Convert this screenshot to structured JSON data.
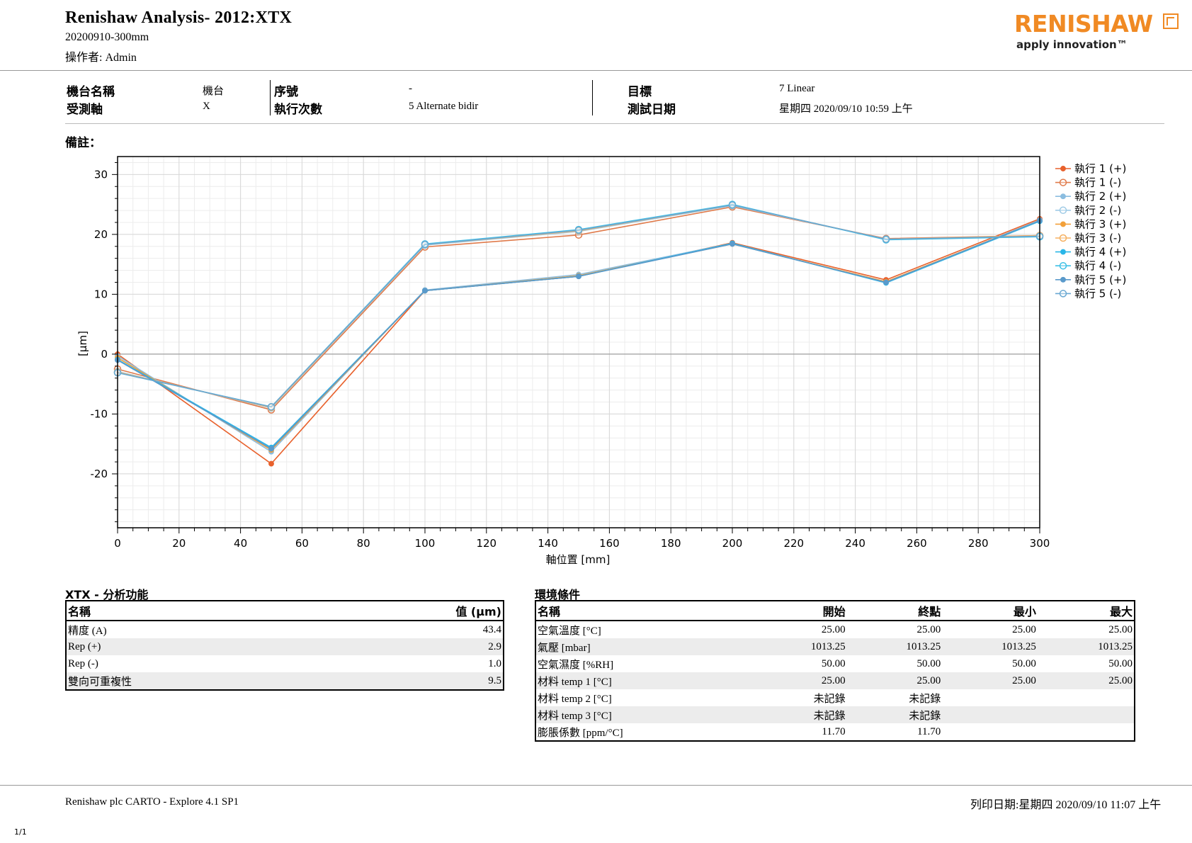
{
  "header": {
    "title": "Renishaw Analysis- 2012:XTX",
    "subtitle": "20200910-300mm",
    "operator": "操作者: Admin",
    "logo_text": "RENISHAW",
    "logo_tagline": "apply innovation™"
  },
  "info": {
    "machine_name_label": "機台名稱",
    "machine_name_value": "機台",
    "axis_label": "受測軸",
    "axis_value": "X",
    "serial_label": "序號",
    "serial_value": "-",
    "runs_label": "執行次數",
    "runs_value": "5 Alternate bidir",
    "target_label": "目標",
    "target_value": "7 Linear",
    "date_label": "測試日期",
    "date_value": "星期四 2020/09/10 10:59 上午"
  },
  "remarks_label": "備註：",
  "chart_data": {
    "type": "line",
    "xlabel": "軸位置 [mm]",
    "ylabel": "[µm]",
    "xlim": [
      0,
      300
    ],
    "ylim": [
      -29,
      33
    ],
    "x_ticks": [
      0,
      20,
      40,
      60,
      80,
      100,
      120,
      140,
      160,
      180,
      200,
      220,
      240,
      260,
      280,
      300
    ],
    "y_ticks": [
      -20,
      -10,
      0,
      10,
      20,
      30
    ],
    "grid": true,
    "legend_position": "right",
    "x": [
      0,
      50,
      100,
      150,
      200,
      250,
      300
    ],
    "series": [
      {
        "name": "執行 1 (+)",
        "color": "#e8612c",
        "values": [
          0.0,
          -18.3,
          10.6,
          13.0,
          18.6,
          12.4,
          22.6
        ]
      },
      {
        "name": "執行 1 (-)",
        "color": "#e07a4a",
        "values": [
          -2.5,
          -9.3,
          17.9,
          19.9,
          24.6,
          19.3,
          19.8
        ]
      },
      {
        "name": "執行 2 (+)",
        "color": "#8bbde0",
        "values": [
          -0.3,
          -16.3,
          10.7,
          13.3,
          18.5,
          12.0,
          22.4
        ]
      },
      {
        "name": "執行 2 (-)",
        "color": "#9fcbe6",
        "values": [
          -2.9,
          -9.0,
          18.2,
          20.5,
          24.8,
          19.2,
          19.7
        ]
      },
      {
        "name": "執行 3 (+)",
        "color": "#f2a03a",
        "values": [
          -0.6,
          -16.0,
          10.6,
          13.1,
          18.4,
          12.1,
          22.3
        ]
      },
      {
        "name": "執行 3 (-)",
        "color": "#f5b060",
        "values": [
          -3.0,
          -8.9,
          18.3,
          20.6,
          24.9,
          19.2,
          19.8
        ]
      },
      {
        "name": "執行 4 (+)",
        "color": "#29b6e8",
        "values": [
          -0.9,
          -15.6,
          10.6,
          13.0,
          18.5,
          11.9,
          22.2
        ]
      },
      {
        "name": "執行 4 (-)",
        "color": "#3cc0e6",
        "values": [
          -3.1,
          -8.8,
          18.4,
          20.8,
          25.0,
          19.1,
          19.6
        ]
      },
      {
        "name": "執行 5 (+)",
        "color": "#5a9acb",
        "values": [
          -1.0,
          -15.8,
          10.6,
          13.0,
          18.4,
          12.0,
          22.3
        ]
      },
      {
        "name": "執行 5 (-)",
        "color": "#6aa8d2",
        "values": [
          -3.1,
          -8.8,
          18.3,
          20.7,
          24.9,
          19.2,
          19.7
        ]
      }
    ]
  },
  "analysis": {
    "title": "XTX - 分析功能",
    "headers": [
      "名稱",
      "值 (µm)"
    ],
    "rows": [
      [
        "精度 (A)",
        "43.4"
      ],
      [
        "Rep (+)",
        "2.9"
      ],
      [
        "Rep (-)",
        "1.0"
      ],
      [
        "雙向可重複性",
        "9.5"
      ]
    ]
  },
  "environment": {
    "title": "環境條件",
    "headers": [
      "名稱",
      "開始",
      "終點",
      "最小",
      "最大"
    ],
    "rows": [
      [
        "空氣溫度 [°C]",
        "25.00",
        "25.00",
        "25.00",
        "25.00"
      ],
      [
        "氣壓 [mbar]",
        "1013.25",
        "1013.25",
        "1013.25",
        "1013.25"
      ],
      [
        "空氣濕度 [%RH]",
        "50.00",
        "50.00",
        "50.00",
        "50.00"
      ],
      [
        "材料 temp 1 [°C]",
        "25.00",
        "25.00",
        "25.00",
        "25.00"
      ],
      [
        "材料 temp 2 [°C]",
        "未記錄",
        "未記錄",
        "",
        ""
      ],
      [
        "材料 temp 3 [°C]",
        "未記錄",
        "未記錄",
        "",
        ""
      ],
      [
        "膨脹係數 [ppm/°C]",
        "11.70",
        "11.70",
        "",
        ""
      ]
    ]
  },
  "footer": {
    "software": "Renishaw plc CARTO - Explore 4.1 SP1",
    "print_date": "列印日期:星期四 2020/09/10 11:07 上午",
    "page": "1/1"
  }
}
